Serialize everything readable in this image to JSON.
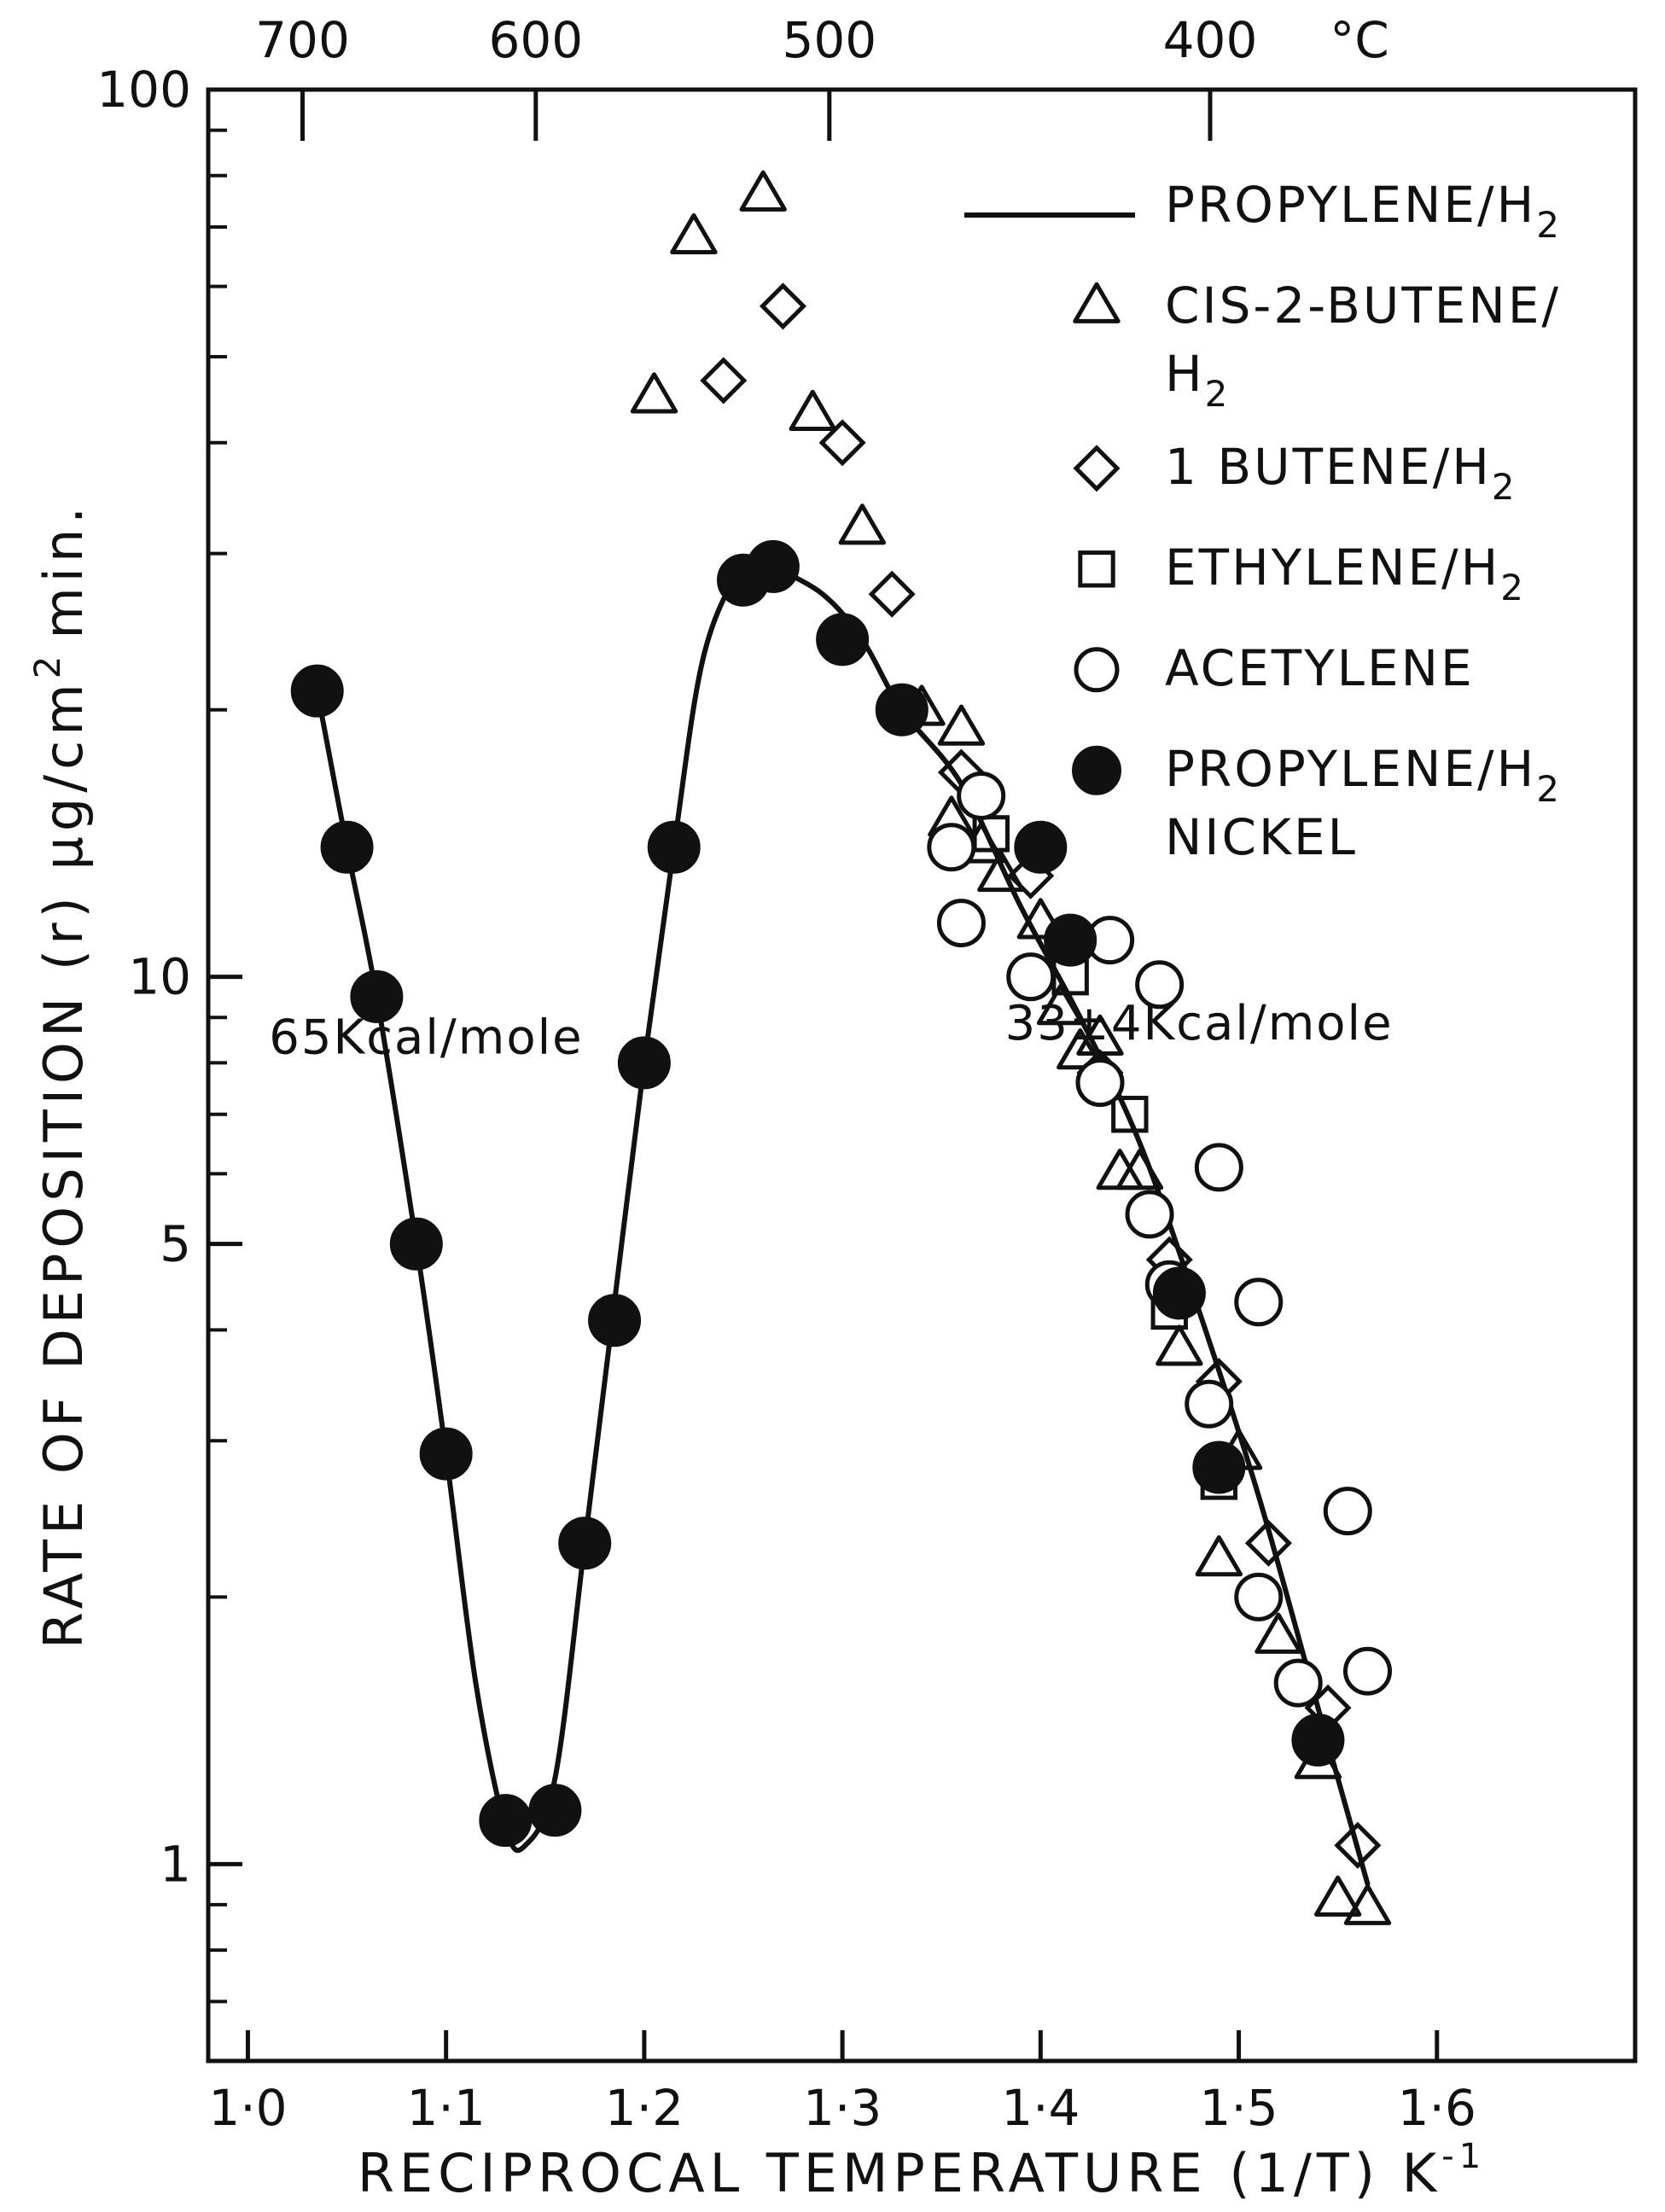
{
  "chart_data": {
    "type": "scatter",
    "xlabel": "RECIPROCAL TEMPERATURE (1/T) K",
    "xlabel_superscript": "-1",
    "ylabel": "RATE OF DEPOSITION (r) µg/cm",
    "ylabel_superscript": "2",
    "ylabel_suffix": "min.",
    "xlim": [
      0.98,
      1.7
    ],
    "ylim": [
      0.6,
      100
    ],
    "yscale": "log",
    "x_ticks": [
      1.0,
      1.1,
      1.2,
      1.3,
      1.4,
      1.5,
      1.6
    ],
    "x_tick_labels": [
      "1·0",
      "1·1",
      "1·2",
      "1·3",
      "1·4",
      "1·5",
      "1·6"
    ],
    "y_tick_labels": [
      {
        "value": 1,
        "label": "1"
      },
      {
        "value": 5,
        "label": "5"
      },
      {
        "value": 10,
        "label": "10"
      },
      {
        "value": 100,
        "label": "100"
      }
    ],
    "top_axis": {
      "ticks_celsius": [
        700,
        600,
        500,
        400
      ],
      "unit_label": "°C"
    },
    "grid": false,
    "legend_position": "top-right",
    "legend": [
      {
        "marker": "line",
        "label": "PROPYLENE/H",
        "sub": "2"
      },
      {
        "marker": "triangle",
        "label": "CIS-2-BUTENE/",
        "line2": "H",
        "line2_sub": "2"
      },
      {
        "marker": "diamond",
        "label": "1 BUTENE/H",
        "sub": "2"
      },
      {
        "marker": "square",
        "label": "ETHYLENE/H",
        "sub": "2"
      },
      {
        "marker": "circle",
        "label": "ACETYLENE"
      },
      {
        "marker": "filled-circle",
        "label": "PROPYLENE/H",
        "sub": "2",
        "line2": "NICKEL"
      }
    ],
    "annotations": [
      {
        "text": "65Kcal/mole",
        "x": 1.09,
        "y": 8.2
      },
      {
        "text": "33±4Kcal/mole",
        "x": 1.48,
        "y": 8.5
      }
    ],
    "series": [
      {
        "label_ref": "legend.0",
        "marker": "line",
        "points": [
          [
            1.265,
            29
          ],
          [
            1.29,
            27
          ],
          [
            1.31,
            24
          ],
          [
            1.33,
            20
          ],
          [
            1.36,
            16.5
          ],
          [
            1.39,
            12
          ],
          [
            1.42,
            9
          ],
          [
            1.45,
            6.5
          ],
          [
            1.48,
            4.2
          ],
          [
            1.51,
            2.6
          ],
          [
            1.54,
            1.5
          ],
          [
            1.565,
            0.95
          ]
        ]
      },
      {
        "label_ref": "legend.5",
        "marker": "line",
        "points": [
          [
            1.035,
            21
          ],
          [
            1.05,
            14
          ],
          [
            1.065,
            9.5
          ],
          [
            1.085,
            5.0
          ],
          [
            1.1,
            2.9
          ],
          [
            1.115,
            1.6
          ],
          [
            1.13,
            1.1
          ],
          [
            1.14,
            1.05
          ],
          [
            1.155,
            1.25
          ],
          [
            1.17,
            2.3
          ],
          [
            1.185,
            4.3
          ],
          [
            1.2,
            8.0
          ],
          [
            1.215,
            14
          ],
          [
            1.23,
            23
          ],
          [
            1.25,
            29
          ],
          [
            1.265,
            29
          ]
        ]
      },
      {
        "label_ref": "legend.1",
        "marker": "triangle",
        "points": [
          [
            1.205,
            45
          ],
          [
            1.225,
            68
          ],
          [
            1.26,
            76
          ],
          [
            1.285,
            43
          ],
          [
            1.31,
            32
          ],
          [
            1.34,
            20
          ],
          [
            1.36,
            19
          ],
          [
            1.355,
            15
          ],
          [
            1.37,
            14
          ],
          [
            1.38,
            13
          ],
          [
            1.4,
            11.5
          ],
          [
            1.41,
            9.2
          ],
          [
            1.42,
            8.2
          ],
          [
            1.43,
            8.5
          ],
          [
            1.44,
            6.0
          ],
          [
            1.45,
            6.0
          ],
          [
            1.47,
            3.8
          ],
          [
            1.49,
            2.2
          ],
          [
            1.5,
            2.9
          ],
          [
            1.52,
            1.8
          ],
          [
            1.54,
            1.3
          ],
          [
            1.55,
            0.91
          ],
          [
            1.565,
            0.89
          ]
        ]
      },
      {
        "label_ref": "legend.2",
        "marker": "diamond",
        "points": [
          [
            1.24,
            47
          ],
          [
            1.27,
            57
          ],
          [
            1.3,
            40
          ],
          [
            1.325,
            27
          ],
          [
            1.36,
            17
          ],
          [
            1.395,
            13
          ],
          [
            1.43,
            7.8
          ],
          [
            1.465,
            4.8
          ],
          [
            1.49,
            3.5
          ],
          [
            1.515,
            2.3
          ],
          [
            1.545,
            1.5
          ],
          [
            1.56,
            1.05
          ]
        ]
      },
      {
        "label_ref": "legend.3",
        "marker": "square",
        "points": [
          [
            1.375,
            14.5
          ],
          [
            1.415,
            10
          ],
          [
            1.445,
            7
          ],
          [
            1.465,
            4.2
          ],
          [
            1.49,
            2.7
          ]
        ]
      },
      {
        "label_ref": "legend.4",
        "marker": "circle",
        "points": [
          [
            1.355,
            14
          ],
          [
            1.36,
            11.5
          ],
          [
            1.37,
            16
          ],
          [
            1.395,
            10
          ],
          [
            1.43,
            7.6
          ],
          [
            1.435,
            11
          ],
          [
            1.455,
            5.4
          ],
          [
            1.46,
            9.8
          ],
          [
            1.465,
            4.5
          ],
          [
            1.485,
            3.3
          ],
          [
            1.49,
            6.1
          ],
          [
            1.51,
            2.0
          ],
          [
            1.51,
            4.3
          ],
          [
            1.53,
            1.6
          ],
          [
            1.555,
            2.5
          ],
          [
            1.565,
            1.65
          ]
        ]
      },
      {
        "label_ref": "legend.5",
        "marker": "filled-circle",
        "points": [
          [
            1.035,
            21
          ],
          [
            1.05,
            14
          ],
          [
            1.065,
            9.5
          ],
          [
            1.085,
            5.0
          ],
          [
            1.1,
            2.9
          ],
          [
            1.13,
            1.12
          ],
          [
            1.155,
            1.15
          ],
          [
            1.17,
            2.3
          ],
          [
            1.185,
            4.1
          ],
          [
            1.2,
            8.0
          ],
          [
            1.215,
            14
          ],
          [
            1.25,
            28
          ],
          [
            1.265,
            29
          ],
          [
            1.3,
            24
          ],
          [
            1.33,
            20
          ],
          [
            1.4,
            14
          ],
          [
            1.415,
            11
          ],
          [
            1.47,
            4.4
          ],
          [
            1.49,
            2.8
          ],
          [
            1.54,
            1.38
          ]
        ]
      }
    ]
  }
}
